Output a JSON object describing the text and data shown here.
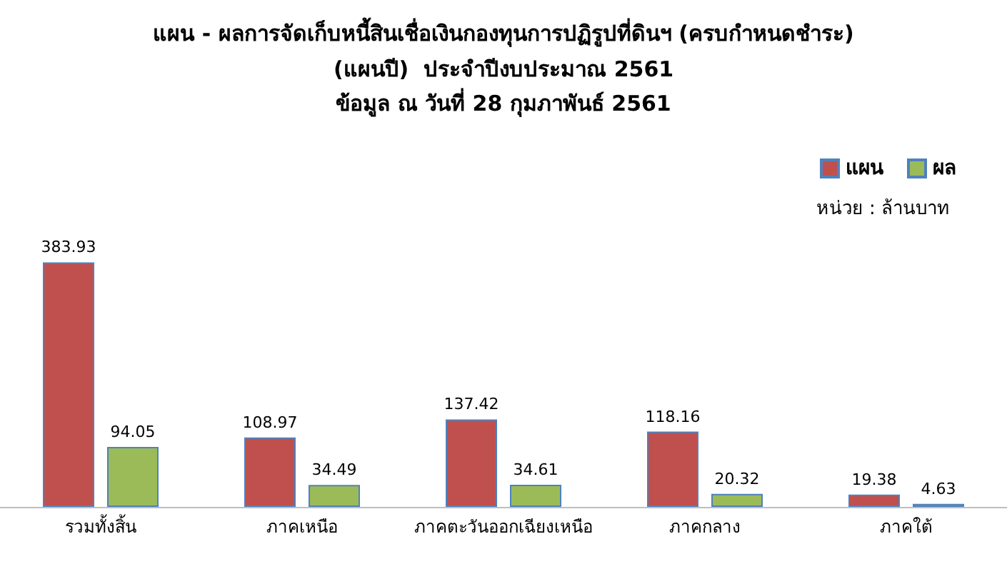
{
  "chart_data": {
    "type": "bar",
    "title": "แผน - ผลการจัดเก็บหนี้สินเชื่อเงินกองทุนการปฏิรูปที่ดินฯ (ครบกำหนดชำระ)\n(แผนปี)  ประจำปีงบประมาณ 2561",
    "subtitle": "ข้อมูล ณ วันที่ 28 กุมภาพันธ์ 2561",
    "annotations": [
      "หน่วย : ล้านบาท"
    ],
    "categories": [
      "รวมทั้งสิ้น",
      "ภาคเหนือ",
      "ภาคตะวันออกเฉียงเหนือ",
      "ภาคกลาง",
      "ภาคใต้"
    ],
    "series": [
      {
        "name": "แผน",
        "color": "#c0504d",
        "values": [
          383.93,
          108.97,
          137.42,
          118.16,
          19.38
        ]
      },
      {
        "name": "ผล",
        "color": "#9bbb59",
        "values": [
          94.05,
          34.49,
          34.61,
          20.32,
          4.63
        ]
      }
    ],
    "data_labels": true,
    "legend": "top right"
  }
}
